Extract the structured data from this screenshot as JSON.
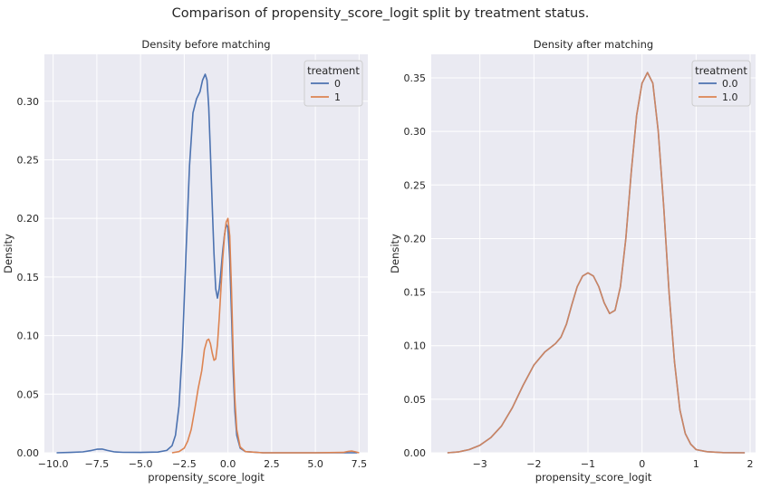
{
  "suptitle": "Comparison of propensity_score_logit split by treatment status.",
  "colors": {
    "panel_bg": "#eaeaf2",
    "grid": "#ffffff",
    "text": "#262626",
    "series_0": "#4c72b0",
    "series_1": "#dd8452"
  },
  "chart_data": [
    {
      "type": "line",
      "title": "Density before matching",
      "xlabel": "propensity_score_logit",
      "ylabel": "Density",
      "xlim": [
        -10.5,
        8.0
      ],
      "ylim": [
        0,
        0.34
      ],
      "xticks": [
        -10.0,
        -7.5,
        -5.0,
        -2.5,
        0.0,
        2.5,
        5.0,
        7.5
      ],
      "xtick_labels": [
        "−10.0",
        "−7.5",
        "−5.0",
        "−2.5",
        "0.0",
        "2.5",
        "5.0",
        "7.5"
      ],
      "yticks": [
        0.0,
        0.05,
        0.1,
        0.15,
        0.2,
        0.25,
        0.3
      ],
      "ytick_labels": [
        "0.00",
        "0.05",
        "0.10",
        "0.15",
        "0.20",
        "0.25",
        "0.30"
      ],
      "grid": true,
      "legend": {
        "title": "treatment",
        "placement": "top-right"
      },
      "series": [
        {
          "name": "0",
          "color": "#4c72b0",
          "points": [
            [
              -9.8,
              0.0
            ],
            [
              -9.0,
              0.0003
            ],
            [
              -8.3,
              0.0008
            ],
            [
              -7.8,
              0.002
            ],
            [
              -7.5,
              0.003
            ],
            [
              -7.2,
              0.0032
            ],
            [
              -6.9,
              0.002
            ],
            [
              -6.5,
              0.0008
            ],
            [
              -6.0,
              0.0004
            ],
            [
              -5.0,
              0.0003
            ],
            [
              -4.0,
              0.0006
            ],
            [
              -3.5,
              0.002
            ],
            [
              -3.2,
              0.006
            ],
            [
              -3.0,
              0.015
            ],
            [
              -2.8,
              0.04
            ],
            [
              -2.6,
              0.09
            ],
            [
              -2.4,
              0.17
            ],
            [
              -2.2,
              0.245
            ],
            [
              -2.0,
              0.29
            ],
            [
              -1.8,
              0.302
            ],
            [
              -1.6,
              0.308
            ],
            [
              -1.45,
              0.318
            ],
            [
              -1.3,
              0.323
            ],
            [
              -1.2,
              0.318
            ],
            [
              -1.1,
              0.295
            ],
            [
              -1.0,
              0.255
            ],
            [
              -0.9,
              0.21
            ],
            [
              -0.8,
              0.17
            ],
            [
              -0.7,
              0.14
            ],
            [
              -0.6,
              0.132
            ],
            [
              -0.5,
              0.14
            ],
            [
              -0.4,
              0.155
            ],
            [
              -0.3,
              0.172
            ],
            [
              -0.2,
              0.186
            ],
            [
              -0.1,
              0.195
            ],
            [
              0.0,
              0.192
            ],
            [
              0.1,
              0.165
            ],
            [
              0.2,
              0.12
            ],
            [
              0.3,
              0.07
            ],
            [
              0.4,
              0.035
            ],
            [
              0.5,
              0.015
            ],
            [
              0.7,
              0.004
            ],
            [
              1.0,
              0.001
            ],
            [
              2.0,
              0.0
            ],
            [
              5.0,
              0.0
            ],
            [
              7.4,
              0.0
            ]
          ]
        },
        {
          "name": "1",
          "color": "#dd8452",
          "points": [
            [
              -3.2,
              0.0
            ],
            [
              -2.8,
              0.001
            ],
            [
              -2.5,
              0.004
            ],
            [
              -2.3,
              0.01
            ],
            [
              -2.1,
              0.02
            ],
            [
              -1.9,
              0.037
            ],
            [
              -1.7,
              0.055
            ],
            [
              -1.5,
              0.07
            ],
            [
              -1.35,
              0.088
            ],
            [
              -1.2,
              0.096
            ],
            [
              -1.1,
              0.097
            ],
            [
              -1.0,
              0.093
            ],
            [
              -0.9,
              0.085
            ],
            [
              -0.8,
              0.079
            ],
            [
              -0.7,
              0.08
            ],
            [
              -0.6,
              0.092
            ],
            [
              -0.5,
              0.115
            ],
            [
              -0.4,
              0.14
            ],
            [
              -0.3,
              0.165
            ],
            [
              -0.2,
              0.185
            ],
            [
              -0.1,
              0.197
            ],
            [
              0.0,
              0.2
            ],
            [
              0.1,
              0.185
            ],
            [
              0.2,
              0.14
            ],
            [
              0.3,
              0.085
            ],
            [
              0.4,
              0.045
            ],
            [
              0.5,
              0.02
            ],
            [
              0.7,
              0.005
            ],
            [
              1.0,
              0.001
            ],
            [
              2.0,
              0.0
            ],
            [
              5.0,
              0.0
            ],
            [
              6.6,
              0.0003
            ],
            [
              6.9,
              0.0012
            ],
            [
              7.1,
              0.0015
            ],
            [
              7.3,
              0.0008
            ],
            [
              7.5,
              0.0
            ]
          ]
        }
      ]
    },
    {
      "type": "line",
      "title": "Density after matching",
      "xlabel": "propensity_score_logit",
      "ylabel": "Density",
      "xlim": [
        -3.9,
        2.1
      ],
      "ylim": [
        0,
        0.372
      ],
      "xticks": [
        -3,
        -2,
        -1,
        0,
        1,
        2
      ],
      "xtick_labels": [
        "−3",
        "−2",
        "−1",
        "0",
        "1",
        "2"
      ],
      "yticks": [
        0.0,
        0.05,
        0.1,
        0.15,
        0.2,
        0.25,
        0.3,
        0.35
      ],
      "ytick_labels": [
        "0.00",
        "0.05",
        "0.10",
        "0.15",
        "0.20",
        "0.25",
        "0.30",
        "0.35"
      ],
      "grid": true,
      "legend": {
        "title": "treatment",
        "placement": "top-right"
      },
      "series": [
        {
          "name": "0.0",
          "color": "#4c72b0",
          "points": [
            [
              -3.6,
              0.0
            ],
            [
              -3.4,
              0.0008
            ],
            [
              -3.2,
              0.003
            ],
            [
              -3.0,
              0.007
            ],
            [
              -2.8,
              0.014
            ],
            [
              -2.6,
              0.025
            ],
            [
              -2.4,
              0.042
            ],
            [
              -2.2,
              0.063
            ],
            [
              -2.0,
              0.082
            ],
            [
              -1.8,
              0.094
            ],
            [
              -1.6,
              0.102
            ],
            [
              -1.5,
              0.108
            ],
            [
              -1.4,
              0.12
            ],
            [
              -1.3,
              0.138
            ],
            [
              -1.2,
              0.155
            ],
            [
              -1.1,
              0.165
            ],
            [
              -1.0,
              0.168
            ],
            [
              -0.9,
              0.165
            ],
            [
              -0.8,
              0.155
            ],
            [
              -0.7,
              0.14
            ],
            [
              -0.6,
              0.13
            ],
            [
              -0.5,
              0.133
            ],
            [
              -0.4,
              0.155
            ],
            [
              -0.3,
              0.2
            ],
            [
              -0.2,
              0.262
            ],
            [
              -0.1,
              0.315
            ],
            [
              0.0,
              0.345
            ],
            [
              0.1,
              0.355
            ],
            [
              0.2,
              0.345
            ],
            [
              0.3,
              0.3
            ],
            [
              0.4,
              0.23
            ],
            [
              0.5,
              0.15
            ],
            [
              0.6,
              0.085
            ],
            [
              0.7,
              0.04
            ],
            [
              0.8,
              0.018
            ],
            [
              0.9,
              0.008
            ],
            [
              1.0,
              0.003
            ],
            [
              1.2,
              0.001
            ],
            [
              1.5,
              0.0002
            ],
            [
              1.9,
              0.0
            ]
          ]
        },
        {
          "name": "1.0",
          "color": "#dd8452",
          "points": [
            [
              -3.6,
              0.0
            ],
            [
              -3.4,
              0.0008
            ],
            [
              -3.2,
              0.003
            ],
            [
              -3.0,
              0.007
            ],
            [
              -2.8,
              0.014
            ],
            [
              -2.6,
              0.025
            ],
            [
              -2.4,
              0.042
            ],
            [
              -2.2,
              0.063
            ],
            [
              -2.0,
              0.082
            ],
            [
              -1.8,
              0.094
            ],
            [
              -1.6,
              0.102
            ],
            [
              -1.5,
              0.108
            ],
            [
              -1.4,
              0.12
            ],
            [
              -1.3,
              0.138
            ],
            [
              -1.2,
              0.155
            ],
            [
              -1.1,
              0.165
            ],
            [
              -1.0,
              0.168
            ],
            [
              -0.9,
              0.165
            ],
            [
              -0.8,
              0.155
            ],
            [
              -0.7,
              0.14
            ],
            [
              -0.6,
              0.13
            ],
            [
              -0.5,
              0.133
            ],
            [
              -0.4,
              0.155
            ],
            [
              -0.3,
              0.2
            ],
            [
              -0.2,
              0.262
            ],
            [
              -0.1,
              0.315
            ],
            [
              0.0,
              0.345
            ],
            [
              0.1,
              0.355
            ],
            [
              0.2,
              0.345
            ],
            [
              0.3,
              0.3
            ],
            [
              0.4,
              0.23
            ],
            [
              0.5,
              0.15
            ],
            [
              0.6,
              0.085
            ],
            [
              0.7,
              0.04
            ],
            [
              0.8,
              0.018
            ],
            [
              0.9,
              0.008
            ],
            [
              1.0,
              0.003
            ],
            [
              1.2,
              0.001
            ],
            [
              1.5,
              0.0002
            ],
            [
              1.9,
              0.0
            ]
          ]
        }
      ]
    }
  ]
}
